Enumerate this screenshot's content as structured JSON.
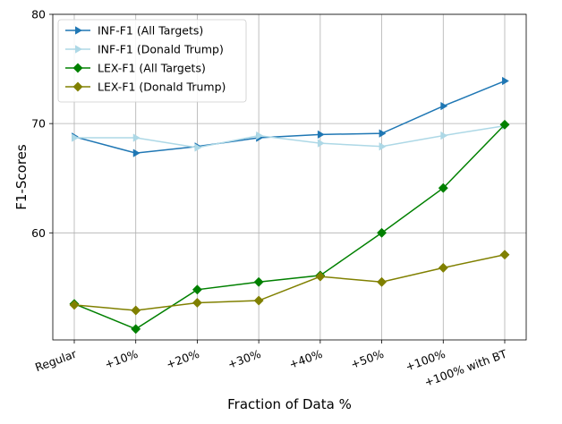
{
  "chart_data": {
    "type": "line",
    "title": "",
    "xlabel": "Fraction of Data %",
    "ylabel": "F1-Scores",
    "categories": [
      "Regular",
      "+10%",
      "+20%",
      "+30%",
      "+40%",
      "+50%",
      "+100%",
      "+100% with BT"
    ],
    "ylim": [
      50.2,
      80
    ],
    "yticks": [
      60,
      70,
      80
    ],
    "grid": true,
    "legend_position": "top-left",
    "series": [
      {
        "name": "INF-F1 (All Targets)",
        "color": "#1f77b4",
        "marker": "triangle-right",
        "values": [
          68.8,
          67.3,
          67.9,
          68.7,
          69.0,
          69.1,
          71.6,
          73.9
        ]
      },
      {
        "name": "INF-F1 (Donald Trump)",
        "color": "#add8e6",
        "marker": "triangle-right",
        "values": [
          68.7,
          68.7,
          67.8,
          68.9,
          68.2,
          67.9,
          68.9,
          69.8
        ]
      },
      {
        "name": "LEX-F1 (All Targets)",
        "color": "#008000",
        "marker": "diamond",
        "values": [
          53.5,
          51.2,
          54.8,
          55.5,
          56.1,
          60.0,
          64.1,
          69.9
        ]
      },
      {
        "name": "LEX-F1 (Donald Trump)",
        "color": "#808000",
        "marker": "diamond",
        "values": [
          53.4,
          52.9,
          53.6,
          53.8,
          56.0,
          55.5,
          56.8,
          58.0
        ]
      }
    ]
  }
}
